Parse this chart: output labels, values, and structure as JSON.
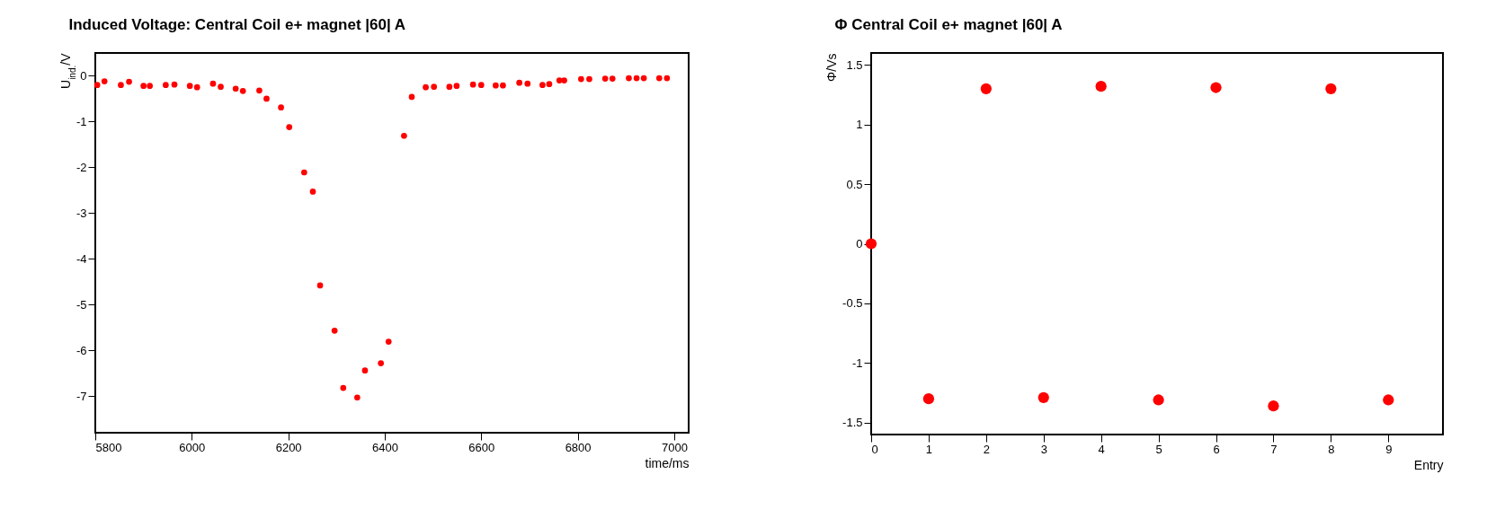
{
  "chart_data": [
    {
      "type": "scatter",
      "title": "Induced Voltage: Central Coil e+ magnet |60| A",
      "xlabel": "time/ms",
      "ylabel": "U$_{ind.}$/V",
      "x": [
        5804,
        5819,
        5853,
        5870,
        5900,
        5913,
        5946,
        5964,
        5996,
        6011,
        6044,
        6060,
        6091,
        6106,
        6140,
        6155,
        6185,
        6202,
        6233,
        6251,
        6266,
        6296,
        6314,
        6343,
        6359,
        6392,
        6408,
        6440,
        6456,
        6485,
        6502,
        6534,
        6549,
        6583,
        6600,
        6630,
        6645,
        6679,
        6696,
        6727,
        6741,
        6762,
        6772,
        6807,
        6824,
        6857,
        6872,
        6906,
        6922,
        6937,
        6969,
        6985
      ],
      "series": [
        {
          "color": "#ff0000",
          "values": [
            -0.2,
            -0.12,
            -0.2,
            -0.13,
            -0.22,
            -0.22,
            -0.2,
            -0.19,
            -0.22,
            -0.25,
            -0.17,
            -0.24,
            -0.28,
            -0.33,
            -0.32,
            -0.5,
            -0.69,
            -1.12,
            -2.11,
            -2.53,
            -4.58,
            -5.57,
            -6.82,
            -7.03,
            -6.44,
            -6.28,
            -5.81,
            -1.31,
            -0.46,
            -0.25,
            -0.24,
            -0.24,
            -0.22,
            -0.19,
            -0.2,
            -0.21,
            -0.21,
            -0.15,
            -0.17,
            -0.2,
            -0.18,
            -0.1,
            -0.1,
            -0.07,
            -0.07,
            -0.06,
            -0.06,
            -0.05,
            -0.05,
            -0.05,
            -0.05,
            -0.05
          ]
        }
      ],
      "xlim": [
        5800,
        7030
      ],
      "xticks": [
        5800,
        6000,
        6200,
        6400,
        6600,
        6800,
        7000
      ],
      "ylim": [
        -7.8,
        0.5
      ],
      "yticks": [
        -7,
        -6,
        -5,
        -4,
        -3,
        -2,
        -1,
        0
      ],
      "marker": "circle"
    },
    {
      "type": "scatter",
      "title": "Φ Central Coil e+ magnet |60| A",
      "xlabel": "Entry",
      "ylabel": "Φ/Vs",
      "x": [
        0,
        1,
        2,
        3,
        4,
        5,
        6,
        7,
        8,
        9
      ],
      "series": [
        {
          "color": "#ff0000",
          "values": [
            0,
            -1.3,
            1.3,
            -1.29,
            1.32,
            -1.31,
            1.31,
            -1.36,
            1.3,
            -1.31
          ]
        }
      ],
      "xlim": [
        0,
        9.95
      ],
      "xticks": [
        0,
        1,
        2,
        3,
        4,
        5,
        6,
        7,
        8,
        9
      ],
      "ylim": [
        -1.6,
        1.6
      ],
      "yticks": [
        -1.5,
        -1,
        -0.5,
        0,
        0.5,
        1,
        1.5
      ],
      "marker": "circle"
    }
  ]
}
